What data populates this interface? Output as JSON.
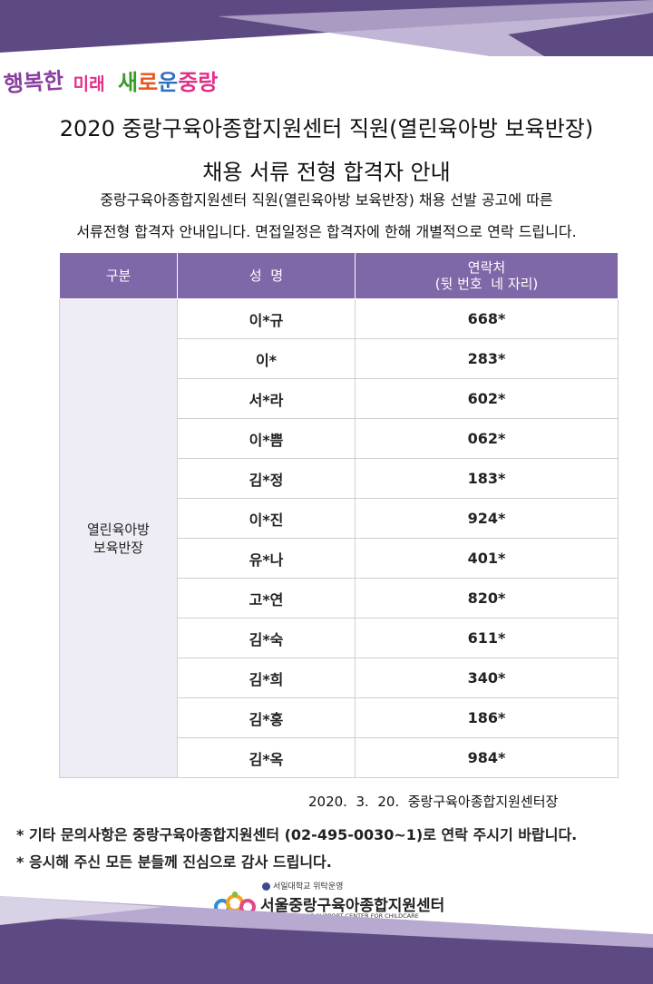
{
  "colors": {
    "banner_purple": "#5e4a82",
    "banner_light": "#b7a9cf",
    "header_bg": "#7f68a8",
    "group_bg": "#eeedf5"
  },
  "slogan": {
    "part1": "행복한",
    "part2": "미래",
    "part3": "새",
    "part4": "로",
    "part5": "운",
    "part6": "중랑"
  },
  "title": {
    "line1": "2020 중랑구육아종합지원센터 직원(열린육아방 보육반장)",
    "line2": "채용 서류 전형 합격자 안내"
  },
  "description": {
    "line1": "중랑구육아종합지원센터 직원(열린육아방 보육반장) 채용 선발 공고에 따른",
    "line2": "서류전형 합격자 안내입니다. 면접일정은 합격자에 한해 개별적으로 연락 드립니다."
  },
  "table": {
    "headers": {
      "category": "구분",
      "name": "성  명",
      "contact_line1": "연락처",
      "contact_line2": "(뒷 번호  네 자리)"
    },
    "group_label_line1": "열린육아방",
    "group_label_line2": "보육반장",
    "rows": [
      {
        "name": "이*규",
        "phone": "668*"
      },
      {
        "name": "이*",
        "phone": "283*"
      },
      {
        "name": "서*라",
        "phone": "602*"
      },
      {
        "name": "이*쁨",
        "phone": "062*"
      },
      {
        "name": "김*정",
        "phone": "183*"
      },
      {
        "name": "이*진",
        "phone": "924*"
      },
      {
        "name": "유*나",
        "phone": "401*"
      },
      {
        "name": "고*연",
        "phone": "820*"
      },
      {
        "name": "김*숙",
        "phone": "611*"
      },
      {
        "name": "김*희",
        "phone": "340*"
      },
      {
        "name": "김*홍",
        "phone": "186*"
      },
      {
        "name": "김*옥",
        "phone": "984*"
      }
    ]
  },
  "footer_date": "2020.  3.  20.  중랑구육아종합지원센터장",
  "notes": {
    "note1": "* 기타 문의사항은 중랑구육아종합지원센터 (02-495-0030~1)로 연락 주시기 바랍니다.",
    "note2": "* 응시해 주신 모든 분들께 진심으로 감사 드립니다."
  },
  "org": {
    "top_label": "서일대학교 위탁운영",
    "name": "서울중랑구육아종합지원센터",
    "english": "SEOUL JUNGNANG SUPPORT CENTER FOR CHILDCARE"
  }
}
